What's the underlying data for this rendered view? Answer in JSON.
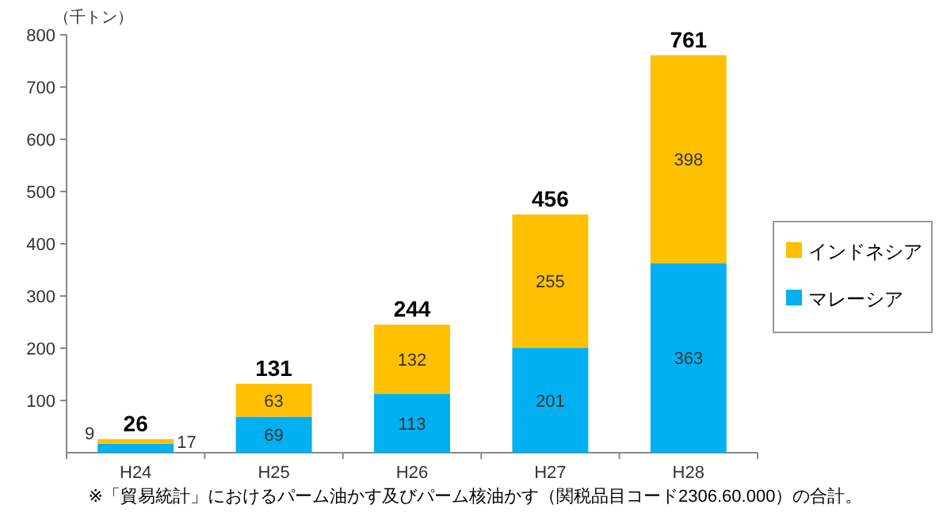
{
  "chart_data": {
    "type": "bar",
    "stacked": true,
    "ylabel": "（千トン）",
    "categories": [
      "H24",
      "H25",
      "H26",
      "H27",
      "H28"
    ],
    "series": [
      {
        "name": "マレーシア",
        "color": "#00b0f0",
        "values": [
          17,
          69,
          113,
          201,
          363
        ]
      },
      {
        "name": "インドネシア",
        "color": "#ffc000",
        "values": [
          9,
          63,
          132,
          255,
          398
        ]
      }
    ],
    "totals": [
      "26",
      "131",
      "244",
      "456",
      "761"
    ],
    "data_labels": true,
    "ylim": [
      0,
      800
    ],
    "yticks": [
      100,
      200,
      300,
      400,
      500,
      600,
      700,
      800
    ],
    "grid": false,
    "legend": "right",
    "annotations": [
      "※「貿易統計」におけるパーム油かす及びパーム核油かす（関税品目コード2306.60.000）の合計。"
    ]
  }
}
